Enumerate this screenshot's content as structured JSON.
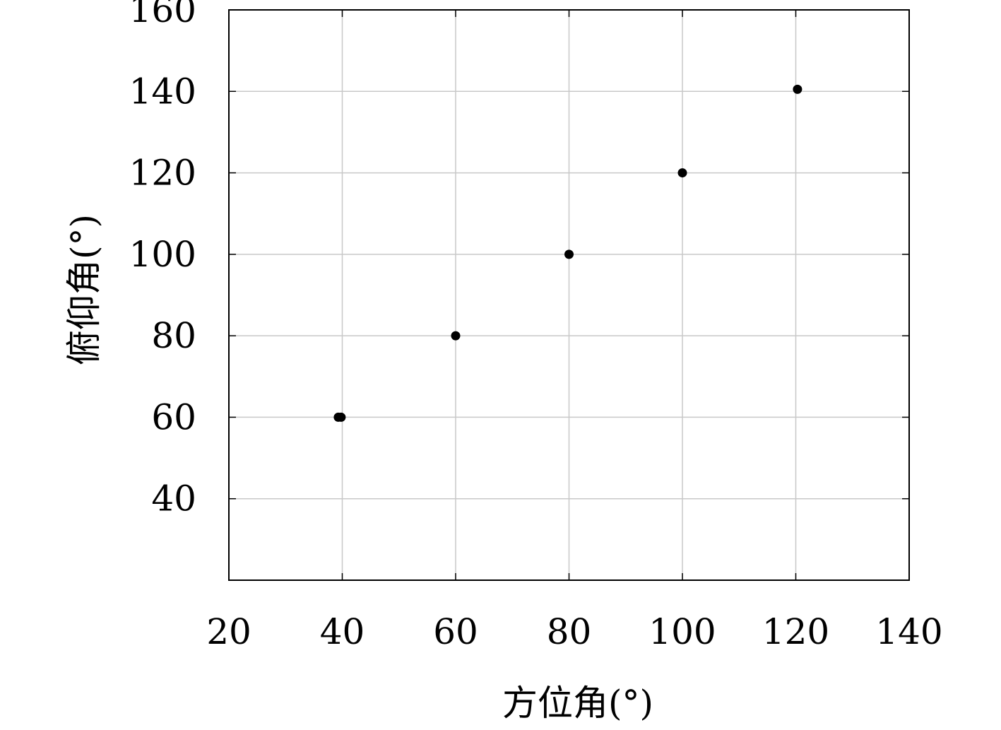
{
  "chart_data": {
    "type": "scatter",
    "xlabel": "方位角(°)",
    "ylabel": "俯仰角(°)",
    "xlim": [
      20,
      140
    ],
    "ylim": [
      20,
      160
    ],
    "xticks": [
      20,
      40,
      60,
      80,
      100,
      120,
      140
    ],
    "yticks": [
      40,
      60,
      80,
      100,
      120,
      140,
      160
    ],
    "xtick_labels": [
      "20",
      "40",
      "60",
      "80",
      "100",
      "120",
      "140"
    ],
    "ytick_labels": [
      "40",
      "60",
      "80",
      "100",
      "120",
      "140",
      "160"
    ],
    "grid": true,
    "legend": false,
    "marker_color": "#000000",
    "grid_color": "#c8c8c8",
    "series": [
      {
        "points": [
          {
            "x": 39.3,
            "y": 60
          },
          {
            "x": 39.8,
            "y": 60
          },
          {
            "x": 60,
            "y": 80
          },
          {
            "x": 80,
            "y": 100
          },
          {
            "x": 100,
            "y": 120
          },
          {
            "x": 120.3,
            "y": 140.5
          }
        ]
      }
    ]
  }
}
